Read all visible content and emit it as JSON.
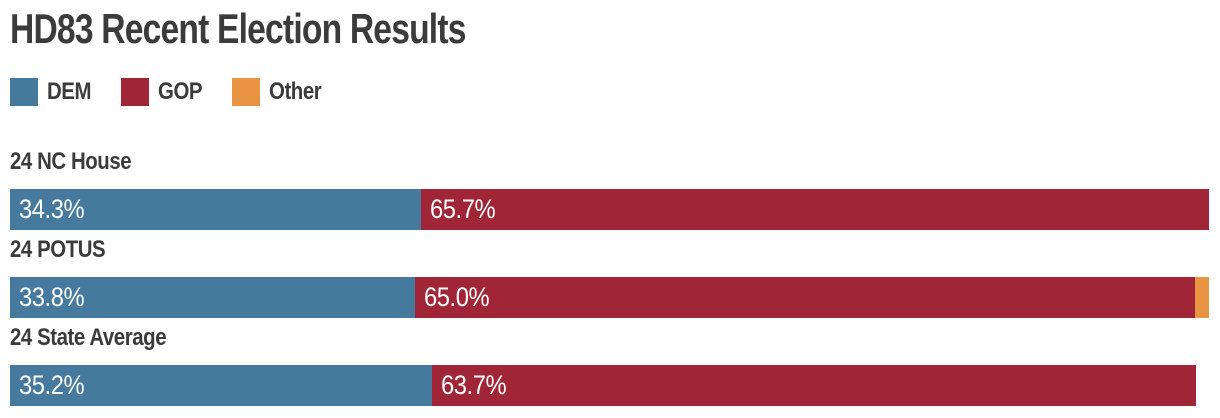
{
  "title": "HD83 Recent Election Results",
  "chart_data": {
    "type": "bar",
    "orientation": "horizontal-stacked",
    "title": "HD83 Recent Election Results",
    "xlim": [
      0,
      100
    ],
    "legend_position": "top",
    "grid": false,
    "categories": [
      "24 NC House",
      "24 POTUS",
      "24 State Average"
    ],
    "series": [
      {
        "name": "DEM",
        "values": [
          34.3,
          33.8,
          35.2
        ]
      },
      {
        "name": "GOP",
        "values": [
          65.7,
          65.0,
          63.7
        ]
      },
      {
        "name": "Other",
        "values": [
          0,
          1.2,
          0
        ]
      }
    ],
    "colors": {
      "DEM": "#45799E",
      "GOP": "#A02637",
      "Other": "#E89443"
    },
    "text_color": "#3b3b3b",
    "value_label_color": "#ffffff",
    "legend": [
      {
        "name": "DEM",
        "color": "#45799E"
      },
      {
        "name": "GOP",
        "color": "#A02637"
      },
      {
        "name": "Other",
        "color": "#E89443"
      }
    ],
    "rows": [
      {
        "label": "24 NC House",
        "segments": [
          {
            "series": "DEM",
            "pct": 34.3,
            "display": "34.3%"
          },
          {
            "series": "GOP",
            "pct": 65.7,
            "display": "65.7%"
          }
        ]
      },
      {
        "label": "24 POTUS",
        "segments": [
          {
            "series": "DEM",
            "pct": 33.8,
            "display": "33.8%"
          },
          {
            "series": "GOP",
            "pct": 65.0,
            "display": "65.0%"
          },
          {
            "series": "Other",
            "pct": 1.2,
            "display": ""
          }
        ]
      },
      {
        "label": "24 State Average",
        "segments": [
          {
            "series": "DEM",
            "pct": 35.2,
            "display": "35.2%"
          },
          {
            "series": "GOP",
            "pct": 63.7,
            "display": "63.7%"
          }
        ]
      }
    ]
  }
}
